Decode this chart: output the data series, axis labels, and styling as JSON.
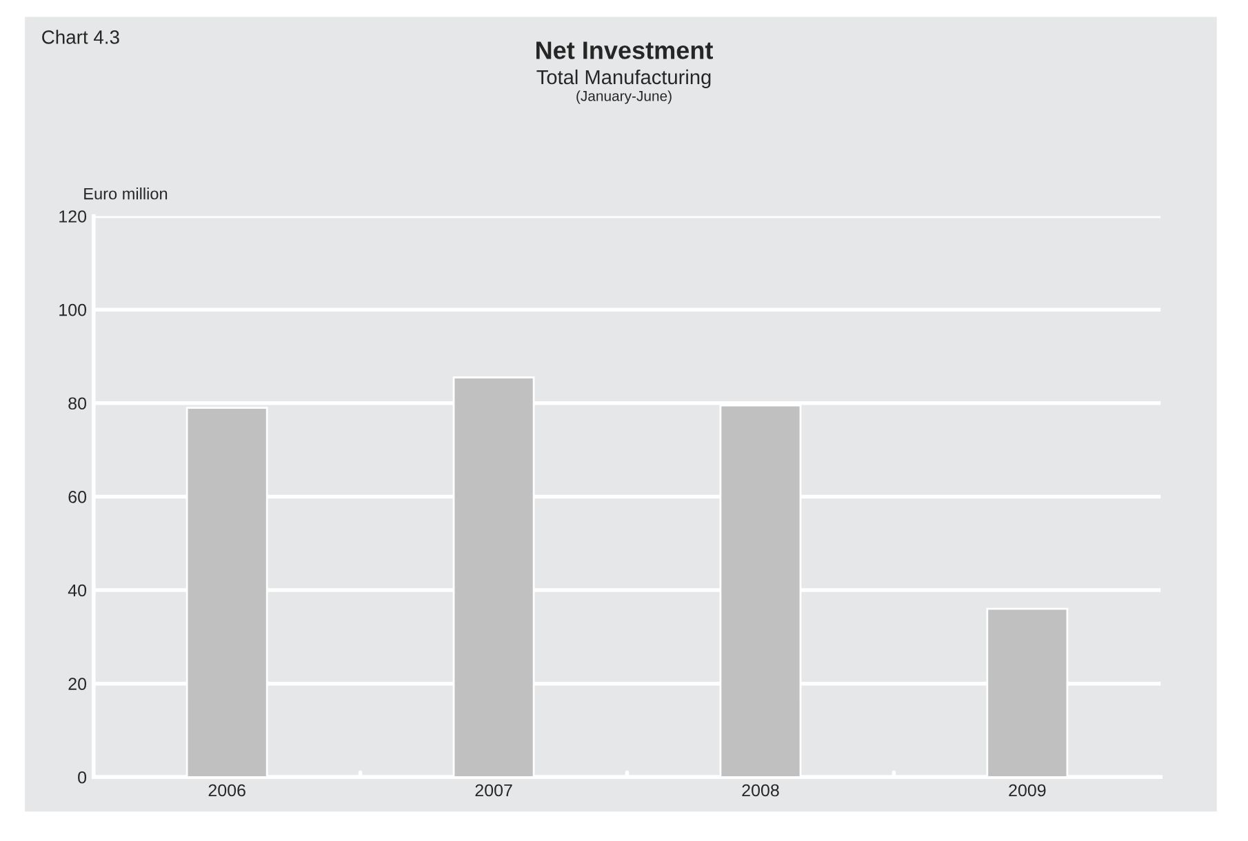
{
  "chart_data": {
    "type": "bar",
    "title": "Net Investment",
    "subtitle": "Total Manufacturing",
    "ylabel": "Euro million",
    "annotations": [
      "Chart 4.3",
      "(January-June)"
    ],
    "categories": [
      "2006",
      "2007",
      "2008",
      "2009"
    ],
    "values": [
      79,
      85.5,
      79.5,
      36
    ],
    "color": "#c0c0c0",
    "ylim": [
      0,
      120
    ],
    "yticks": [
      0,
      20,
      40,
      60,
      80,
      100,
      120
    ],
    "grid": "y",
    "legend": false
  }
}
